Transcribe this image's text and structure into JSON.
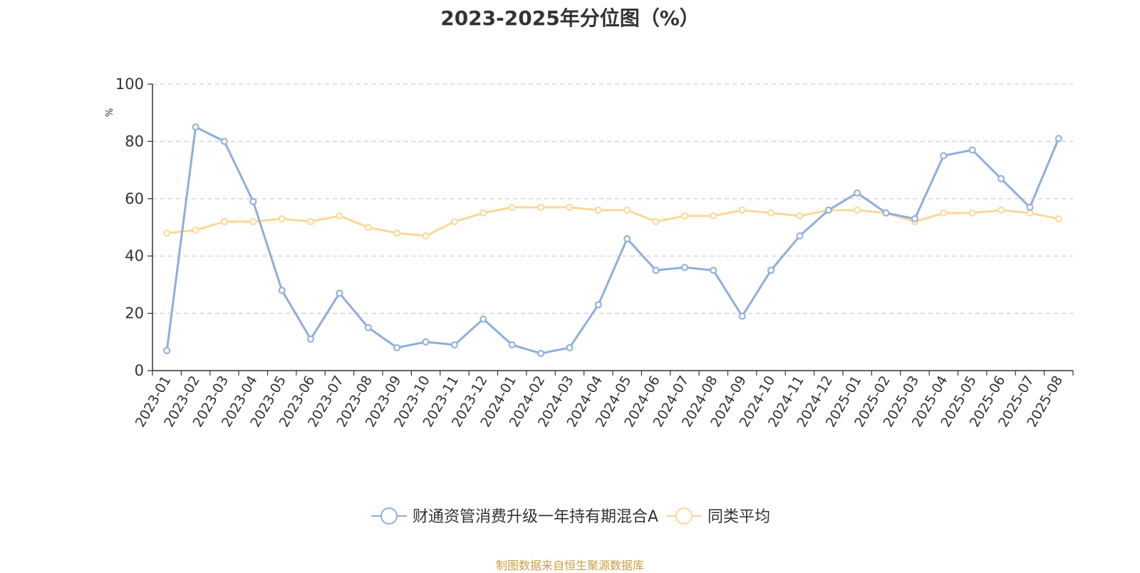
{
  "chart_data": {
    "type": "line",
    "title": "2023-2025年分位图（%）",
    "ylabel": "%",
    "ylim": [
      0,
      100
    ],
    "yticks": [
      0,
      20,
      40,
      60,
      80,
      100
    ],
    "grid": true,
    "legend_position": "bottom",
    "categories": [
      "2023-01",
      "2023-02",
      "2023-03",
      "2023-04",
      "2023-05",
      "2023-06",
      "2023-07",
      "2023-08",
      "2023-09",
      "2023-10",
      "2023-11",
      "2023-12",
      "2024-01",
      "2024-02",
      "2024-03",
      "2024-04",
      "2024-05",
      "2024-06",
      "2024-07",
      "2024-08",
      "2024-09",
      "2024-10",
      "2024-11",
      "2024-12",
      "2025-01",
      "2025-02",
      "2025-03",
      "2025-04",
      "2025-05",
      "2025-06",
      "2025-07",
      "2025-08"
    ],
    "series": [
      {
        "name": "财通资管消费升级一年持有期混合A",
        "color": "#8eaedb",
        "values": [
          7,
          85,
          80,
          59,
          28,
          11,
          27,
          15,
          8,
          10,
          9,
          18,
          9,
          6,
          8,
          23,
          46,
          35,
          36,
          35,
          19,
          35,
          47,
          56,
          62,
          55,
          53,
          75,
          77,
          67,
          57,
          81
        ]
      },
      {
        "name": "同类平均",
        "color": "#fcd797",
        "values": [
          48,
          49,
          52,
          52,
          53,
          52,
          54,
          50,
          48,
          47,
          52,
          55,
          57,
          57,
          57,
          56,
          56,
          52,
          54,
          54,
          56,
          55,
          54,
          56,
          56,
          55,
          52,
          55,
          55,
          56,
          55,
          53
        ]
      }
    ]
  },
  "source_note": "制图数据来自恒生聚源数据库"
}
